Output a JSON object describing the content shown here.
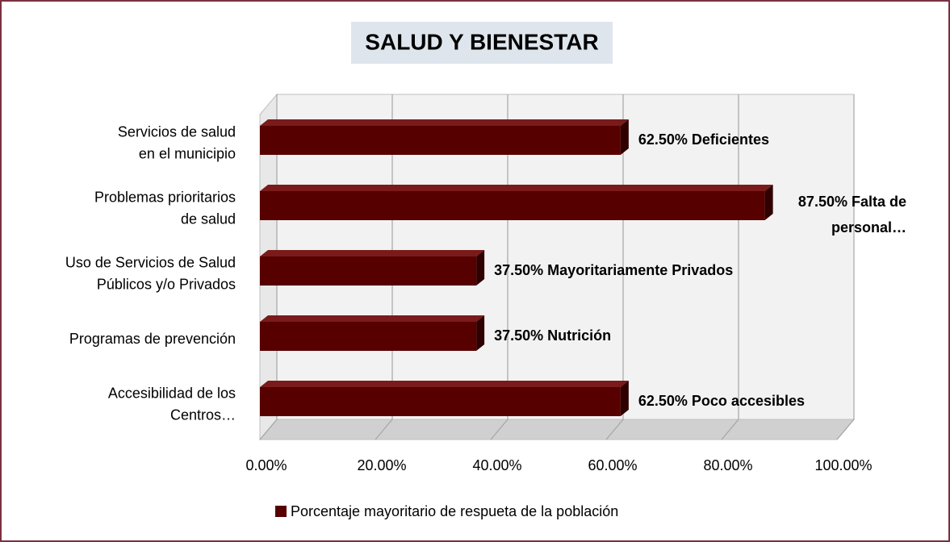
{
  "chart_data": {
    "type": "bar3d_horizontal",
    "title": "SALUD Y BIENESTAR",
    "categories": [
      "Servicios de salud\nen el municipio",
      "Problemas prioritarios\nde salud",
      "Uso de Servicios de Salud\nPúblicos y/o Privados",
      "Programas de prevención",
      "Accesibilidad de los\nCentros…"
    ],
    "series": [
      {
        "name": "Porcentaje mayoritario de respueta de la población",
        "color": "#560000",
        "values": [
          62.5,
          87.5,
          37.5,
          37.5,
          62.5
        ],
        "value_labels": [
          "62.50% Deficientes",
          "87.50% Falta de\npersonal…",
          "37.50% Mayoritariamente Privados",
          "37.50%  Nutrición",
          "62.50% Poco accesibles"
        ]
      }
    ],
    "xlim": [
      0,
      100
    ],
    "xticks": [
      {
        "value": 0,
        "label": "0.00%"
      },
      {
        "value": 20,
        "label": "20.00%"
      },
      {
        "value": 40,
        "label": "40.00%"
      },
      {
        "value": 60,
        "label": "60.00%"
      },
      {
        "value": 80,
        "label": "80.00%"
      },
      {
        "value": 100,
        "label": "100.00%"
      }
    ],
    "grid": true,
    "legend": "bottom"
  }
}
